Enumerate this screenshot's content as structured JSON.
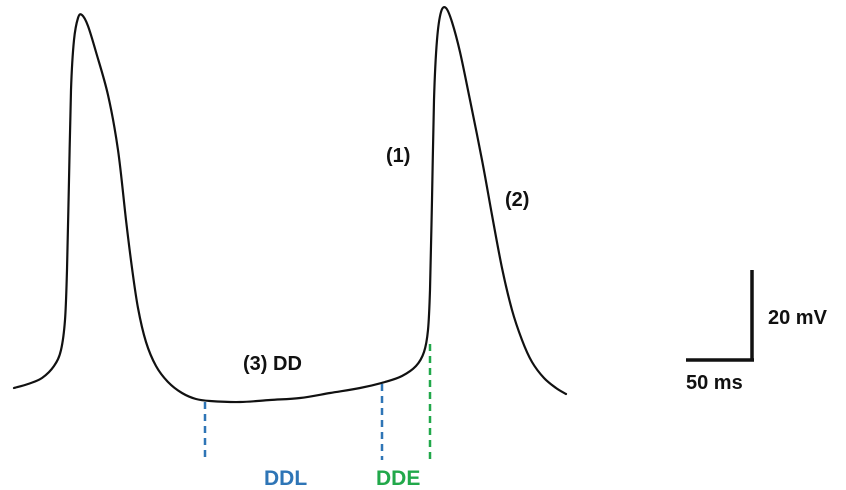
{
  "labels": {
    "phase_1": "(1)",
    "phase_2": "(2)",
    "phase_3": "(3) DD"
  },
  "markers": {
    "ddl": {
      "label": "DDL",
      "color": "#2e75b6"
    },
    "dde": {
      "label": "DDE",
      "color": "#21a84a"
    }
  },
  "scale_bar": {
    "voltage_label": "20 mV",
    "time_label": "50 ms"
  },
  "colors": {
    "trace": "#111111",
    "background": "#ffffff"
  }
}
